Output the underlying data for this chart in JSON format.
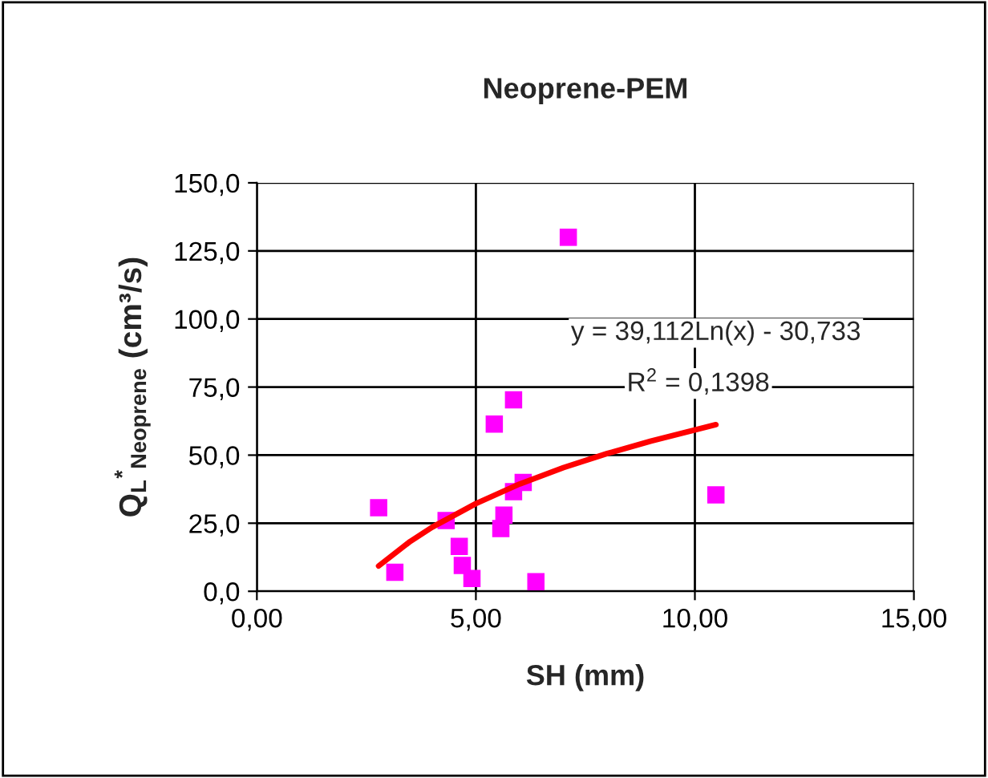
{
  "chart_data": {
    "type": "scatter",
    "title": "Neoprene-PEM",
    "xlabel": "SH (mm)",
    "ylabel": "Q$_{L}$$^{*}$$_{Neoprene}$ (cm³/s)",
    "series": [
      {
        "color": "#ff00ff",
        "marker": "square",
        "x": [
          2.78,
          3.15,
          4.32,
          4.62,
          4.69,
          4.91,
          5.42,
          5.86,
          5.57,
          5.64,
          5.86,
          6.08,
          6.37,
          7.11,
          10.48
        ],
        "values": [
          30.7,
          7,
          26,
          16.5,
          9.5,
          4.7,
          61.4,
          70.3,
          23,
          28,
          36.6,
          40,
          3.5,
          130,
          35.4
        ]
      },
      {
        "type": "line",
        "color": "#ff0000",
        "marker": "none",
        "line_style": "solid",
        "x": [
          2.78,
          3.5,
          4,
          5,
          6,
          7,
          8,
          9,
          10.48
        ],
        "values": [
          9.3,
          18.3,
          23.5,
          32.2,
          39.4,
          45.4,
          50.6,
          55.2,
          61.2
        ]
      }
    ],
    "annotations": [
      {
        "text": "y = 39,112Ln(x) - 30,733",
        "x": 10.48,
        "y": 61.2
      },
      {
        "text": "R$^{2}$ = 0,1398",
        "x": 10.48,
        "y": 61.2
      }
    ],
    "xlim": [
      0,
      15
    ],
    "xticks": [
      {
        "value": 0,
        "label": "0,00"
      },
      {
        "value": 5,
        "label": "5,00"
      },
      {
        "value": 10,
        "label": "10,00"
      },
      {
        "value": 15,
        "label": "15,00"
      }
    ],
    "ylim": [
      0,
      150
    ],
    "yticks": [
      {
        "value": 0,
        "label": "0,0"
      },
      {
        "value": 25,
        "label": "25,0"
      },
      {
        "value": 50,
        "label": "50,0"
      },
      {
        "value": 75,
        "label": "75,0"
      },
      {
        "value": 100,
        "label": "100,0"
      },
      {
        "value": 125,
        "label": "125,0"
      },
      {
        "value": 150,
        "label": "150,0"
      }
    ],
    "grid": true,
    "legend": false
  }
}
